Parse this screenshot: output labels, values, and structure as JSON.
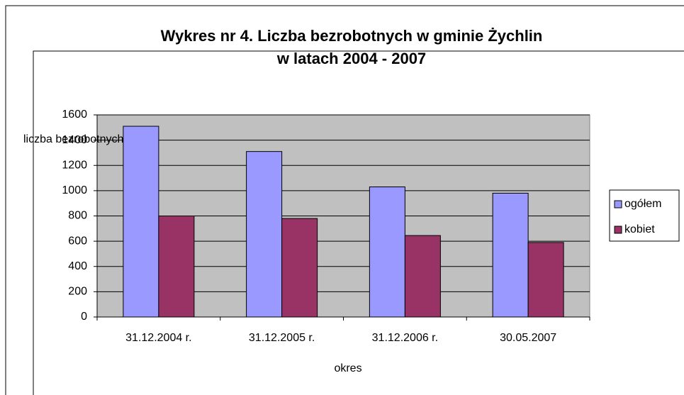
{
  "chart_data": {
    "type": "bar",
    "title": [
      "Wykres nr 4. Liczba bezrobotnych w gminie Żychlin",
      "w latach 2004 - 2007"
    ],
    "y_label": "liczba bezrobotnych",
    "x_label": "okres",
    "categories": [
      "31.12.2004 r.",
      "31.12.2005 r.",
      "31.12.2006 r.",
      "30.05.2007"
    ],
    "series": [
      {
        "name": "ogółem",
        "color": "#9999ff",
        "values": [
          1510,
          1310,
          1030,
          980
        ]
      },
      {
        "name": "kobiet",
        "color": "#993366",
        "values": [
          800,
          780,
          645,
          590
        ]
      }
    ],
    "ylim": [
      0,
      1600
    ],
    "yticks": [
      0,
      200,
      400,
      600,
      800,
      1000,
      1200,
      1400,
      1600
    ],
    "grid": true,
    "legend": "right"
  }
}
